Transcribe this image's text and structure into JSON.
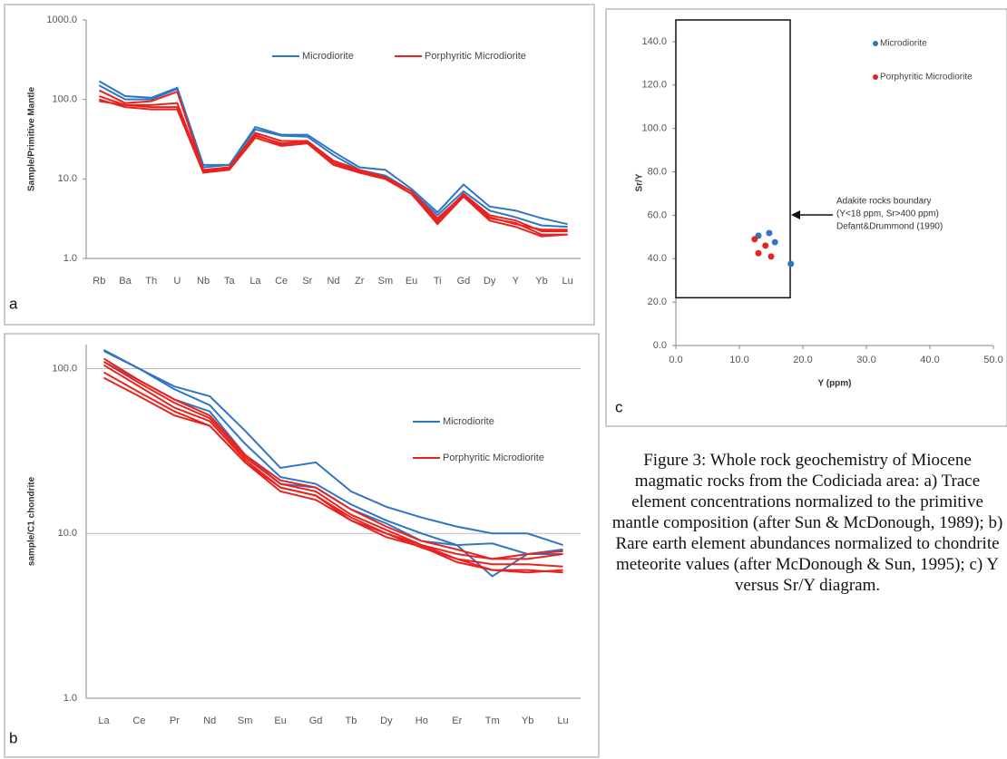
{
  "chart_data": [
    {
      "type": "line",
      "panel_label": "a",
      "y_label": "Sample/Primitive Mantle",
      "log_y": true,
      "grid": false,
      "legend": "top",
      "categories": [
        "Rb",
        "Ba",
        "Th",
        "U",
        "Nb",
        "Ta",
        "La",
        "Ce",
        "Sr",
        "Nd",
        "Zr",
        "Sm",
        "Eu",
        "Ti",
        "Gd",
        "Dy",
        "Y",
        "Yb",
        "Lu"
      ],
      "ylim": [
        1,
        1000
      ],
      "yticks": [
        {
          "value": 1,
          "label": "1.0"
        },
        {
          "value": 10,
          "label": "10.0"
        },
        {
          "value": 100,
          "label": "100.0"
        },
        {
          "value": 1000,
          "label": "1000.0"
        }
      ],
      "series": [
        {
          "name": "Microdiorite",
          "color": "#2e75c4",
          "samples": [
            [
              170,
              110,
              105,
              140,
              15,
              15,
              45,
              36,
              36,
              22,
              14,
              13,
              7.5,
              3.8,
              8.5,
              4.5,
              4,
              3.2,
              2.7
            ],
            [
              150,
              100,
              100,
              135,
              14,
              15,
              42,
              35,
              34,
              20,
              13,
              11,
              7,
              3.5,
              7,
              4,
              3.3,
              2.6,
              2.5
            ]
          ]
        },
        {
          "name": "Porphyritic Microdiorite",
          "color": "#e8231f",
          "samples": [
            [
              130,
              90,
              95,
              125,
              13,
              14,
              38,
              30,
              30,
              17,
              13,
              10.5,
              7,
              3,
              6.5,
              3.5,
              3,
              2.2,
              2.2
            ],
            [
              110,
              85,
              85,
              90,
              12.5,
              13.5,
              35,
              28,
              29,
              16,
              12,
              10,
              6.5,
              2.8,
              6,
              3.2,
              2.8,
              2,
              2
            ],
            [
              100,
              80,
              75,
              75,
              12,
              13,
              33,
              26,
              28,
              15,
              12,
              10,
              6.5,
              2.7,
              6,
              3,
              2.5,
              1.9,
              2
            ],
            [
              95,
              85,
              80,
              80,
              12.5,
              14,
              36,
              27,
              30,
              16,
              12.5,
              10.5,
              7,
              3.2,
              6.3,
              3.3,
              2.7,
              2.3,
              2.3
            ]
          ]
        }
      ]
    },
    {
      "type": "line",
      "panel_label": "b",
      "y_label": "sample/C1 chondrite",
      "log_y": true,
      "grid": true,
      "legend": "right",
      "categories": [
        "La",
        "Ce",
        "Pr",
        "Nd",
        "Sm",
        "Eu",
        "Gd",
        "Tb",
        "Dy",
        "Ho",
        "Er",
        "Tm",
        "Yb",
        "Lu"
      ],
      "ylim": [
        1,
        140
      ],
      "yticks": [
        {
          "value": 1,
          "label": "1.0"
        },
        {
          "value": 10,
          "label": "10.0"
        },
        {
          "value": 100,
          "label": "100.0"
        }
      ],
      "series": [
        {
          "name": "Microdiorite",
          "color": "#2e75c4",
          "samples": [
            [
              130,
              100,
              78,
              68,
              42,
              25,
              27,
              18,
              14.5,
              12.5,
              11,
              10,
              10,
              8.5
            ],
            [
              128,
              100,
              75,
              60,
              35,
              22,
              20,
              15,
              12,
              10,
              8.5,
              8.7,
              7.5,
              8
            ],
            [
              110,
              85,
              65,
              55,
              30,
              20,
              19,
              14,
              11.5,
              9,
              8.5,
              5.5,
              7.5,
              7.5
            ]
          ]
        },
        {
          "name": "Porphyritic Microdiorite",
          "color": "#e8231f",
          "samples": [
            [
              115,
              85,
              65,
              52,
              30,
              21,
              19,
              14,
              11,
              9,
              8,
              7,
              7.5,
              7.8
            ],
            [
              110,
              82,
              62,
              50,
              29,
              20,
              18,
              13,
              10.5,
              8.5,
              7.5,
              7,
              7,
              7.5
            ],
            [
              105,
              78,
              58,
              48,
              28,
              19,
              17,
              12.5,
              10,
              8.5,
              7,
              6.5,
              6.5,
              6.3
            ],
            [
              95,
              72,
              55,
              45,
              27,
              19,
              17,
              12,
              10,
              8.2,
              7,
              6,
              5.8,
              6
            ],
            [
              88,
              68,
              52,
              45,
              27,
              18,
              16,
              12,
              9.5,
              8.3,
              6.7,
              6,
              6,
              5.8
            ]
          ]
        }
      ]
    },
    {
      "type": "scatter",
      "panel_label": "c",
      "x_label": "Y (ppm)",
      "y_label": "Sr/Y",
      "grid": false,
      "legend": "top-right",
      "xlim": [
        0,
        50
      ],
      "xticks": [
        {
          "value": 0,
          "label": "0.0"
        },
        {
          "value": 10,
          "label": "10.0"
        },
        {
          "value": 20,
          "label": "20.0"
        },
        {
          "value": 30,
          "label": "30.0"
        },
        {
          "value": 40,
          "label": "40.0"
        },
        {
          "value": 50,
          "label": "50.0"
        }
      ],
      "ylim": [
        0,
        150
      ],
      "yticks": [
        {
          "value": 0,
          "label": "0.0"
        },
        {
          "value": 20,
          "label": "20.0"
        },
        {
          "value": 40,
          "label": "40.0"
        },
        {
          "value": 60,
          "label": "60.0"
        },
        {
          "value": 80,
          "label": "80.0"
        },
        {
          "value": 100,
          "label": "100.0"
        },
        {
          "value": 120,
          "label": "120.0"
        },
        {
          "value": 140,
          "label": "140.0"
        }
      ],
      "adakite_box": {
        "x": [
          0,
          18
        ],
        "y": [
          22,
          150
        ]
      },
      "annotation": [
        "Adakite rocks boundary",
        "(Y<18 ppm, Sr>400 ppm)",
        "Defant&Drummond (1990)"
      ],
      "series": [
        {
          "name": "Microdiorite",
          "color": "#2e75c4",
          "x": [
            13,
            14.7,
            15.6,
            18.1
          ],
          "y": [
            50.6,
            51.8,
            47.6,
            37.6
          ]
        },
        {
          "name": "Porphyritic Microdiorite",
          "color": "#e8231f",
          "x": [
            12.4,
            14.1,
            13,
            15
          ],
          "y": [
            49,
            46,
            42.5,
            41
          ]
        }
      ]
    }
  ],
  "caption": "Figure 3: Whole rock geochemistry of Miocene magmatic rocks from the Codiciada area: a) Trace element concentrations normalized to the primitive mantle composition (after Sun & McDonough, 1989); b) Rare earth element abundances normalized to chondrite meteorite values (after McDonough & Sun, 1995); c) Y versus Sr/Y diagram."
}
